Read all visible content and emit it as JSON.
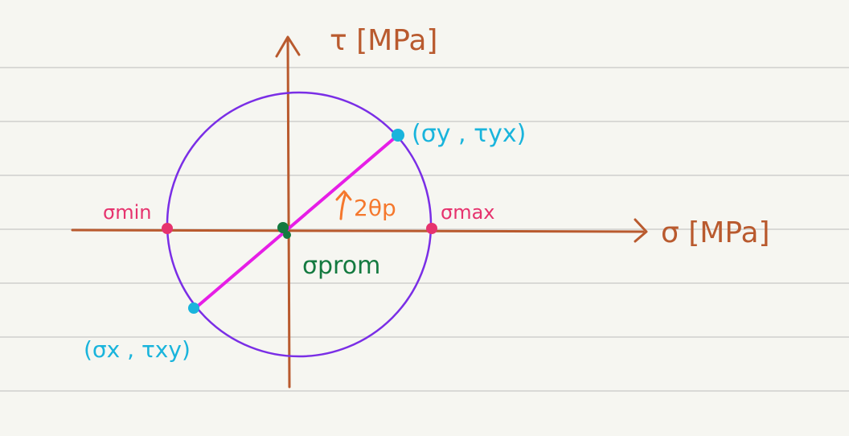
{
  "axes": {
    "sigma_label": "σ [MPa]",
    "tau_label": "τ [MPa]"
  },
  "points": {
    "sigma_min": "σmin",
    "sigma_max": "σmax",
    "sigma_prom": "σprom",
    "point_y": "(σy , τyx)",
    "point_x": "(σx , τxy)",
    "angle": "2θp"
  },
  "colors": {
    "paper": "#f6f6f1",
    "rule_lines": "#d9d9d6",
    "axes": "#b95a2e",
    "circle": "#7a2ee6",
    "diameter": "#e61ee6",
    "endpoints": "#19b4dc",
    "principal": "#e6336e",
    "center": "#147a40",
    "angle": "#f5782d"
  }
}
